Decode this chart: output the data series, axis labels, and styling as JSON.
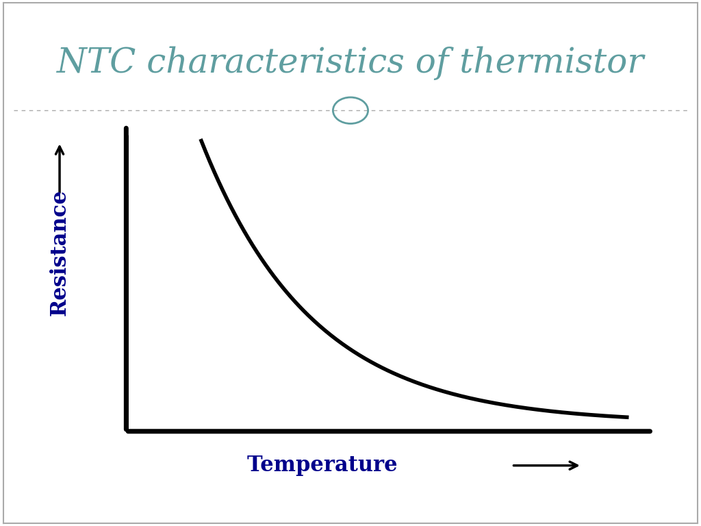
{
  "title": "NTC characteristics of thermistor",
  "title_color": "#5f9ea0",
  "title_fontsize": 36,
  "xlabel": "Temperature",
  "ylabel": "Resistance",
  "xlabel_color": "#00008B",
  "ylabel_color": "#00008B",
  "label_fontsize": 22,
  "background_color": "#ffffff",
  "footer_color": "#7fa8a8",
  "curve_color": "#000000",
  "axis_color": "#000000",
  "curve_linewidth": 4,
  "axis_linewidth": 5,
  "border_color": "#aaaaaa",
  "dashed_line_color": "#aaaaaa",
  "circle_color": "#5f9ea0"
}
